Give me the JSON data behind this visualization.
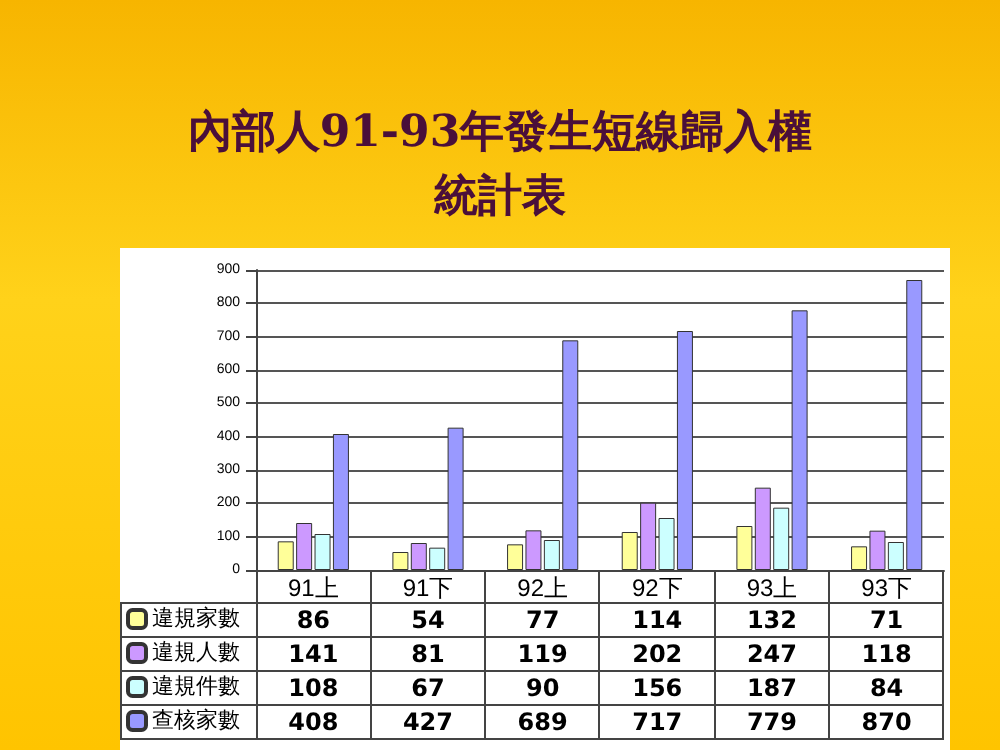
{
  "chart_data": {
    "type": "bar",
    "title": "內部人91-93年發生短線歸入權統計表",
    "categories": [
      "91上",
      "91下",
      "92上",
      "92下",
      "93上",
      "93下"
    ],
    "series": [
      {
        "name": "違規家數",
        "color": "#ffff99",
        "values": [
          86,
          54,
          77,
          114,
          132,
          71
        ]
      },
      {
        "name": "違規人數",
        "color": "#cc99ff",
        "values": [
          141,
          81,
          119,
          202,
          247,
          118
        ]
      },
      {
        "name": "違規件數",
        "color": "#ccffff",
        "values": [
          108,
          67,
          90,
          156,
          187,
          84
        ]
      },
      {
        "name": "查核家數",
        "color": "#9999ff",
        "values": [
          408,
          427,
          689,
          717,
          779,
          870
        ]
      }
    ],
    "ylim": [
      0,
      900
    ],
    "yticks": [
      0,
      100,
      200,
      300,
      400,
      500,
      600,
      700,
      800,
      900
    ],
    "grid": true,
    "legend": "bottom left",
    "data_labels": true
  }
}
